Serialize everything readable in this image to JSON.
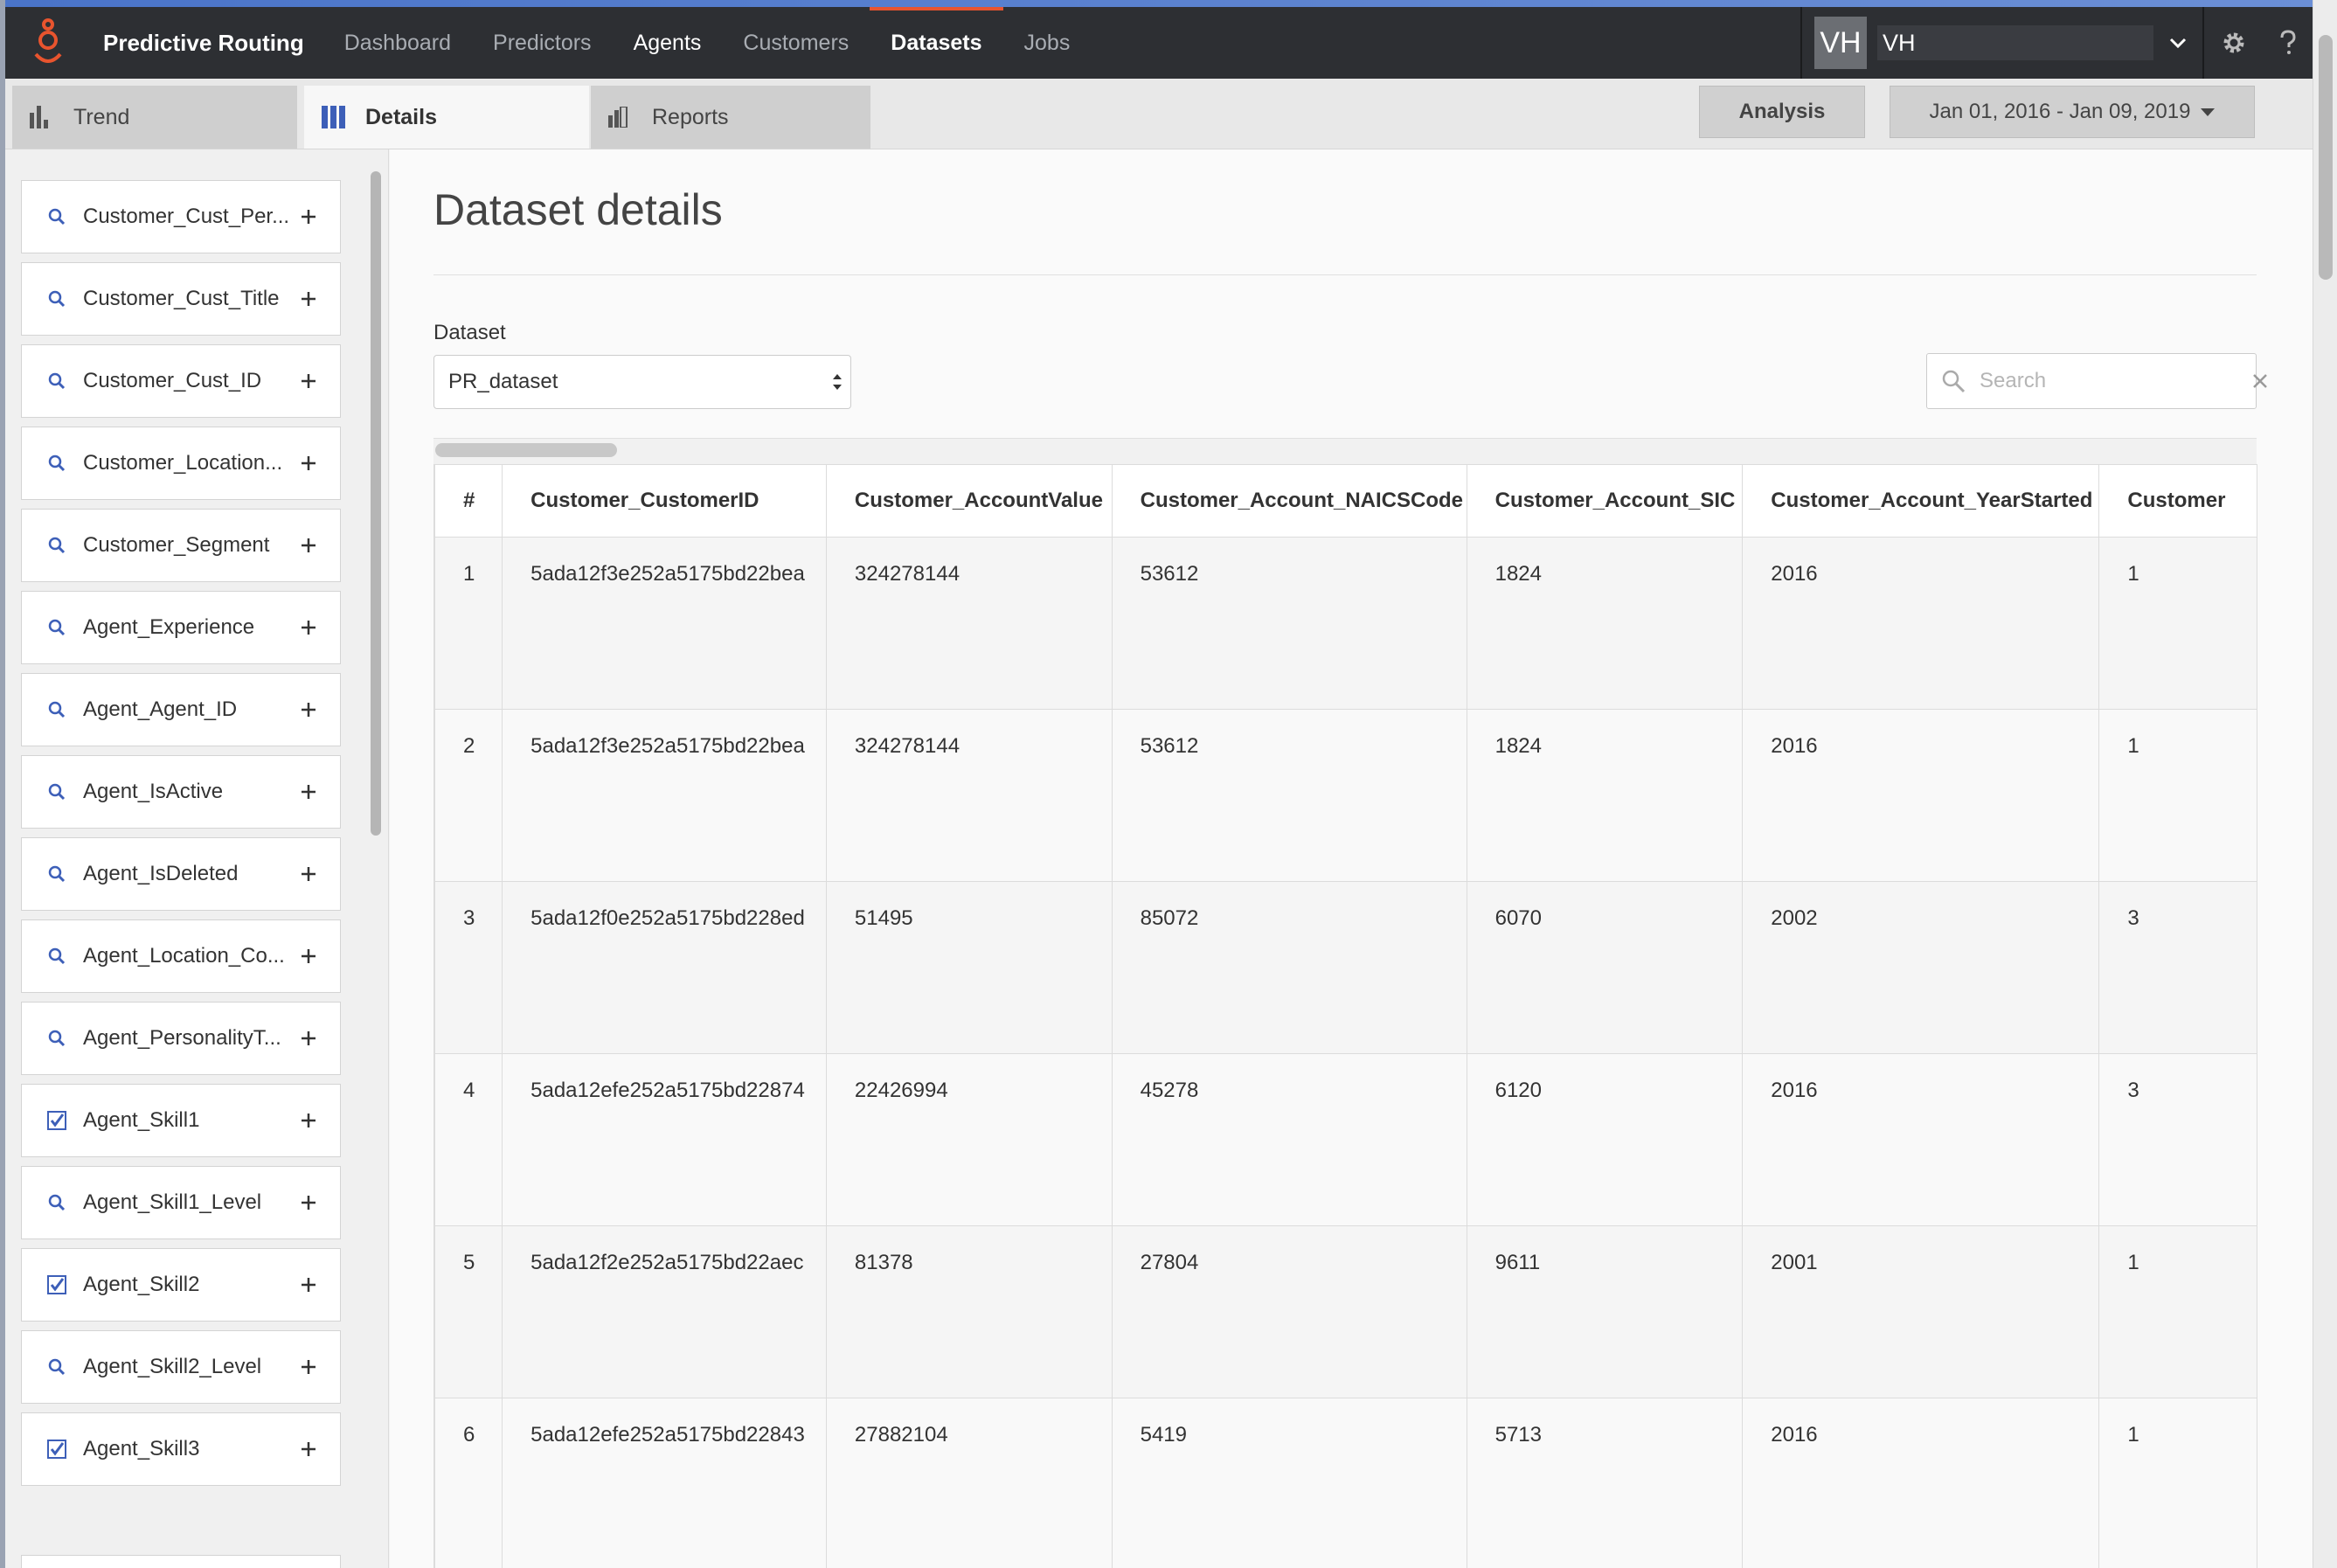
{
  "colors": {
    "nav_bg": "#2d2f33",
    "accent": "#e8542e",
    "link_blue": "#3d5fb8"
  },
  "nav": {
    "brand": "Predictive Routing",
    "items": [
      {
        "label": "Dashboard"
      },
      {
        "label": "Predictors"
      },
      {
        "label": "Agents"
      },
      {
        "label": "Customers"
      },
      {
        "label": "Datasets"
      },
      {
        "label": "Jobs"
      }
    ],
    "active": "Datasets",
    "avatar_initials": "VH",
    "username": "VH"
  },
  "tabs": [
    {
      "label": "Trend",
      "icon": "bar-chart-icon"
    },
    {
      "label": "Details",
      "icon": "columns-icon"
    },
    {
      "label": "Reports",
      "icon": "report-icon"
    }
  ],
  "toolbar": {
    "analysis_label": "Analysis",
    "date_range": "Jan 01, 2016 - Jan 09, 2019"
  },
  "sidebar": {
    "items": [
      {
        "label": "Customer_Cust_Per...",
        "icon": "search-icon"
      },
      {
        "label": "Customer_Cust_Title",
        "icon": "search-icon"
      },
      {
        "label": "Customer_Cust_ID",
        "icon": "search-icon"
      },
      {
        "label": "Customer_Location...",
        "icon": "search-icon"
      },
      {
        "label": "Customer_Segment",
        "icon": "search-icon"
      },
      {
        "label": "Agent_Experience",
        "icon": "search-icon"
      },
      {
        "label": "Agent_Agent_ID",
        "icon": "search-icon"
      },
      {
        "label": "Agent_IsActive",
        "icon": "search-icon"
      },
      {
        "label": "Agent_IsDeleted",
        "icon": "search-icon"
      },
      {
        "label": "Agent_Location_Co...",
        "icon": "search-icon"
      },
      {
        "label": "Agent_PersonalityT...",
        "icon": "search-icon"
      },
      {
        "label": "Agent_Skill1",
        "icon": "checkbox-icon"
      },
      {
        "label": "Agent_Skill1_Level",
        "icon": "search-icon"
      },
      {
        "label": "Agent_Skill2",
        "icon": "checkbox-icon"
      },
      {
        "label": "Agent_Skill2_Level",
        "icon": "search-icon"
      },
      {
        "label": "Agent_Skill3",
        "icon": "checkbox-icon"
      }
    ]
  },
  "main": {
    "title": "Dataset details",
    "dataset_label": "Dataset",
    "dataset_value": "PR_dataset",
    "search_placeholder": "Search"
  },
  "table": {
    "headers": [
      "#",
      "Customer_CustomerID",
      "Customer_AccountValue",
      "Customer_Account_NAICSCode",
      "Customer_Account_SIC",
      "Customer_Account_YearStarted",
      "Customer"
    ],
    "rows": [
      [
        "1",
        "5ada12f3e252a5175bd22bea",
        "324278144",
        "53612",
        "1824",
        "2016",
        "1"
      ],
      [
        "2",
        "5ada12f3e252a5175bd22bea",
        "324278144",
        "53612",
        "1824",
        "2016",
        "1"
      ],
      [
        "3",
        "5ada12f0e252a5175bd228ed",
        "51495",
        "85072",
        "6070",
        "2002",
        "3"
      ],
      [
        "4",
        "5ada12efe252a5175bd22874",
        "22426994",
        "45278",
        "6120",
        "2016",
        "3"
      ],
      [
        "5",
        "5ada12f2e252a5175bd22aec",
        "81378",
        "27804",
        "9611",
        "2001",
        "1"
      ],
      [
        "6",
        "5ada12efe252a5175bd22843",
        "27882104",
        "5419",
        "5713",
        "2016",
        "1"
      ]
    ]
  }
}
